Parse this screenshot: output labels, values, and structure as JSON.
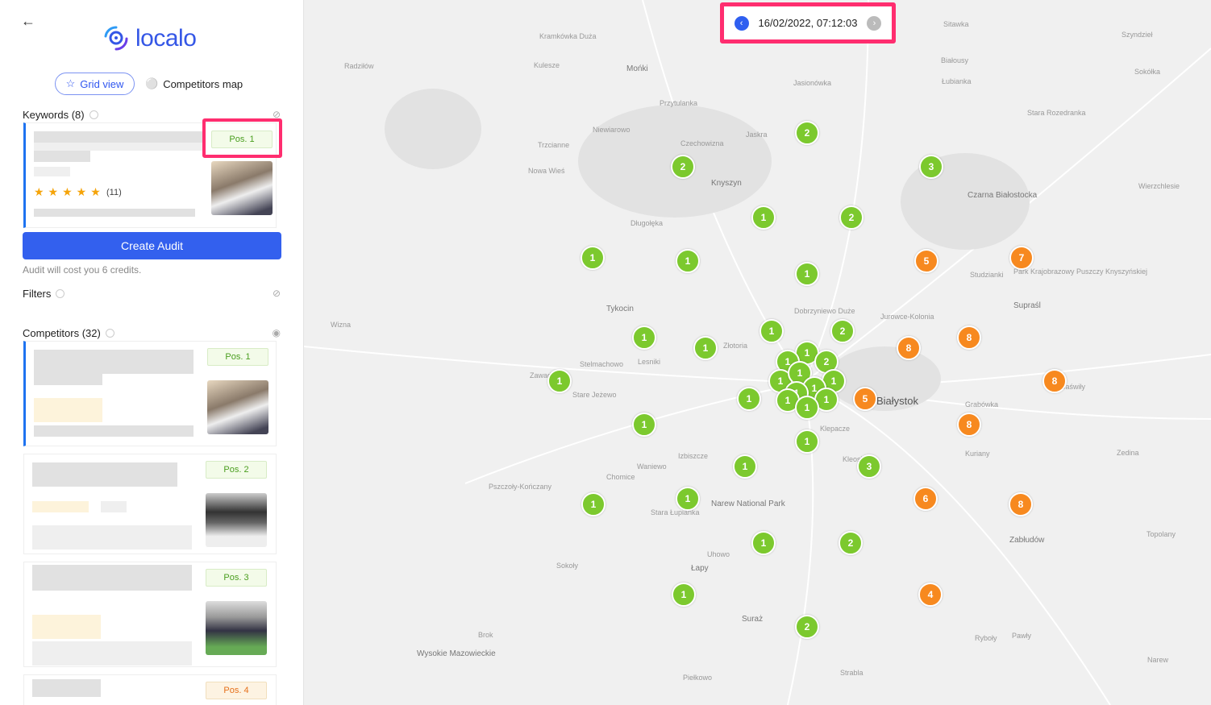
{
  "header": {
    "logo_text": "localo",
    "back_icon": "arrow-left-icon"
  },
  "view_toggle": {
    "grid_view": "Grid view",
    "competitors_map": "Competitors map"
  },
  "keywords": {
    "title": "Keywords (8)",
    "card": {
      "position": "Pos. 1",
      "rating_count": "(11)",
      "stars": 5
    }
  },
  "audit": {
    "button": "Create Audit",
    "cost_note": "Audit will cost you 6 credits."
  },
  "filters": {
    "title": "Filters"
  },
  "competitors": {
    "title": "Competitors (32)",
    "items": [
      {
        "position": "Pos. 1"
      },
      {
        "position": "Pos. 2"
      },
      {
        "position": "Pos. 3"
      },
      {
        "position": "Pos. 4"
      }
    ]
  },
  "datebar": {
    "datetime": "16/02/2022, 07:12:03"
  },
  "colors": {
    "accent": "#3360ee",
    "good": "#7cc92e",
    "bad": "#f7891f",
    "highlight": "#ff2d6f"
  },
  "map": {
    "labels": [
      "Białystok",
      "Narew National Park",
      "Tykocin",
      "Knyszyn",
      "Mońki",
      "Czarna Białostocka",
      "Supraśl",
      "Zabłudów",
      "Łapy",
      "Suraż",
      "Wysokie Mazowieckie",
      "Park Krajobrazowy Puszczy Knyszyńskiej",
      "Klepacze",
      "Trzcianne",
      "Nowa Wieś",
      "Długołęka",
      "Złotoria",
      "Dobrzyniewo Duże",
      "Jurowce-Kolonia",
      "Kuriany",
      "Grabówka",
      "Studzianki",
      "Sokółka",
      "Jasionówka",
      "Zawady",
      "Wizna",
      "Sokoły",
      "Uhowo",
      "Strabla",
      "Stare Jeżewo",
      "Chomice",
      "Kleosin",
      "Jaświły",
      "Ryboły",
      "Niewiarowo",
      "Przytulanka",
      "Kramkówka Duża",
      "Radziłów",
      "Kulesze",
      "Czechowizna",
      "Stelmachowo",
      "Lesniki",
      "Waniewo",
      "Izbiszcze",
      "Stara Łupianka",
      "Pszczoły-Kończany",
      "Brok",
      "Pawły",
      "Narew",
      "Topolany",
      "Zedina",
      "Wierzchlesie",
      "Szyndzieł",
      "Sitawka",
      "Białousy",
      "Łubianka",
      "Stara Rozedranka",
      "Piełkowo",
      "Jaskra"
    ],
    "markers": [
      2,
      2,
      3,
      1,
      2,
      1,
      1,
      1,
      1,
      2,
      1,
      1,
      1,
      1,
      2,
      1,
      1,
      1,
      1,
      1,
      1,
      1,
      1,
      1,
      1,
      1,
      1,
      1,
      3,
      1,
      1,
      1,
      2,
      1,
      2,
      5,
      7,
      8,
      8,
      8,
      5,
      8,
      6,
      8,
      4
    ]
  }
}
